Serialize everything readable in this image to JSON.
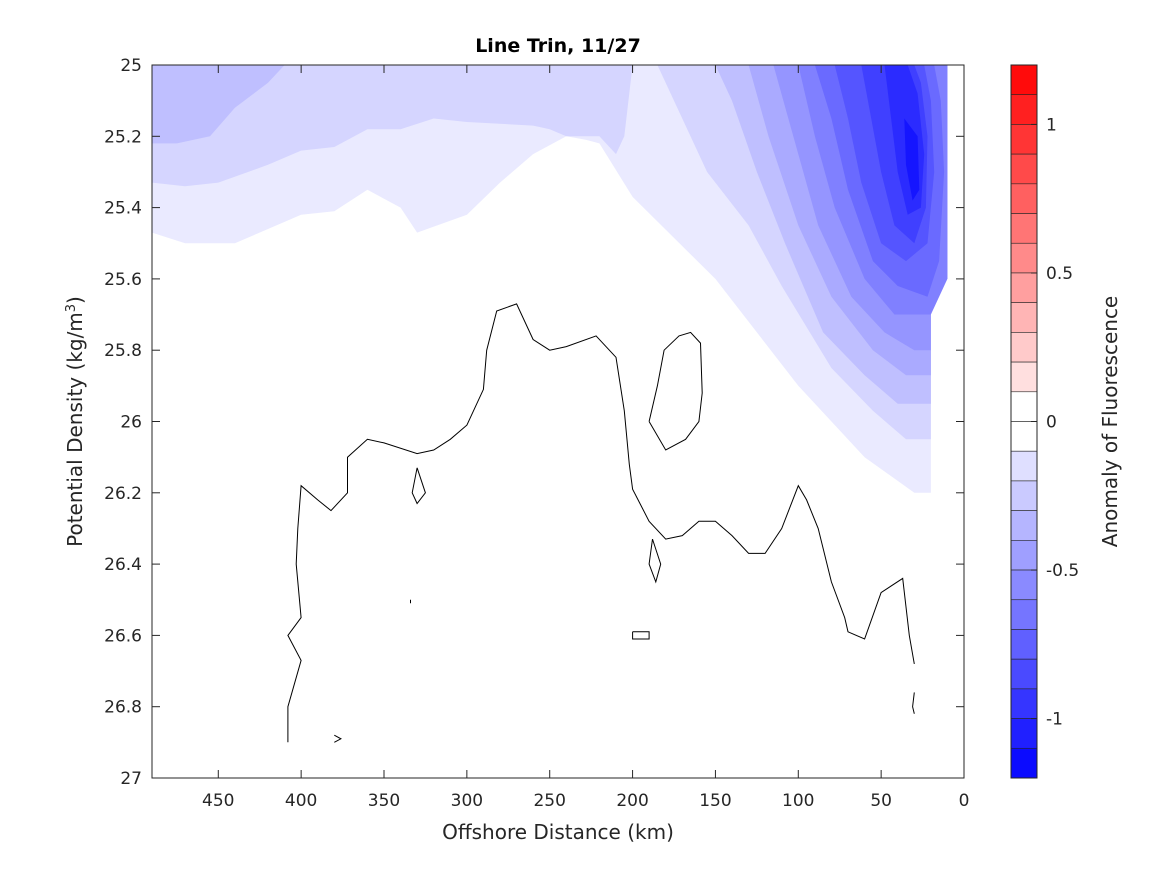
{
  "chart_data": {
    "type": "contour",
    "title": "Line Trin, 11/27",
    "xlabel": "Offshore Distance (km)",
    "ylabel_main": "Potential Density (kg/m",
    "ylabel_sup": "3",
    "ylabel_close": ")",
    "xlim": [
      490,
      0
    ],
    "x_reversed": true,
    "ylim": [
      25,
      27
    ],
    "y_reversed": true,
    "x_ticks": [
      450,
      400,
      350,
      300,
      250,
      200,
      150,
      100,
      50,
      0
    ],
    "x_tick_labels": [
      "450",
      "400",
      "350",
      "300",
      "250",
      "200",
      "150",
      "100",
      "50",
      "0"
    ],
    "y_ticks": [
      25,
      25.2,
      25.4,
      25.6,
      25.8,
      26,
      26.2,
      26.4,
      26.6,
      26.8,
      27
    ],
    "y_tick_labels": [
      "25",
      "25.2",
      "25.4",
      "25.6",
      "25.8",
      "26",
      "26.2",
      "26.4",
      "26.6",
      "26.8",
      "27"
    ],
    "colorbar": {
      "label": "Anomaly of Fluorescence",
      "range": [
        -1.2,
        1.2
      ],
      "levels": 24,
      "ticks": [
        1,
        0.5,
        0,
        -0.5,
        -1
      ],
      "tick_labels": [
        "1",
        "0.5",
        "0",
        "-0.5",
        "-1"
      ],
      "negative_color": "#0000ff",
      "positive_color": "#ff0000",
      "zero_color": "#ffffff"
    },
    "filled_regions": [
      {
        "level": -0.1,
        "points": [
          [
            490,
            25
          ],
          [
            490,
            25.47
          ],
          [
            470,
            25.5
          ],
          [
            440,
            25.5
          ],
          [
            420,
            25.46
          ],
          [
            400,
            25.42
          ],
          [
            380,
            25.41
          ],
          [
            360,
            25.35
          ],
          [
            340,
            25.4
          ],
          [
            330,
            25.47
          ],
          [
            300,
            25.42
          ],
          [
            280,
            25.33
          ],
          [
            260,
            25.25
          ],
          [
            240,
            25.2
          ],
          [
            228,
            25.21
          ],
          [
            220,
            25.22
          ],
          [
            200,
            25.37
          ],
          [
            150,
            25.6
          ],
          [
            100,
            25.9
          ],
          [
            60,
            26.1
          ],
          [
            30,
            26.2
          ],
          [
            20,
            26.2
          ],
          [
            20,
            25.6
          ],
          [
            10,
            25.6
          ],
          [
            10,
            25
          ]
        ]
      },
      {
        "level": -0.2,
        "points": [
          [
            490,
            25
          ],
          [
            490,
            25.33
          ],
          [
            470,
            25.34
          ],
          [
            450,
            25.33
          ],
          [
            420,
            25.28
          ],
          [
            400,
            25.24
          ],
          [
            380,
            25.23
          ],
          [
            360,
            25.18
          ],
          [
            340,
            25.18
          ],
          [
            320,
            25.15
          ],
          [
            300,
            25.16
          ],
          [
            260,
            25.17
          ],
          [
            250,
            25.18
          ],
          [
            240,
            25.2
          ],
          [
            230,
            25.2
          ],
          [
            220,
            25.2
          ],
          [
            210,
            25.25
          ],
          [
            205,
            25.2
          ],
          [
            200,
            25
          ],
          [
            185,
            25
          ],
          [
            175,
            25.1
          ],
          [
            155,
            25.3
          ],
          [
            130,
            25.45
          ],
          [
            110,
            25.62
          ],
          [
            80,
            25.85
          ],
          [
            55,
            25.97
          ],
          [
            35,
            26.05
          ],
          [
            20,
            26.05
          ],
          [
            20,
            25.6
          ],
          [
            10,
            25.6
          ],
          [
            10,
            25
          ]
        ]
      },
      {
        "level": -0.3,
        "points": [
          [
            490,
            25
          ],
          [
            490,
            25.22
          ],
          [
            475,
            25.22
          ],
          [
            455,
            25.2
          ],
          [
            440,
            25.12
          ],
          [
            420,
            25.05
          ],
          [
            410,
            25
          ],
          [
            150,
            25
          ],
          [
            140,
            25.1
          ],
          [
            125,
            25.3
          ],
          [
            108,
            25.5
          ],
          [
            85,
            25.75
          ],
          [
            60,
            25.87
          ],
          [
            40,
            25.95
          ],
          [
            20,
            25.95
          ],
          [
            20,
            25.6
          ],
          [
            10,
            25.6
          ],
          [
            10,
            25
          ]
        ]
      },
      {
        "level": -0.4,
        "points": [
          [
            130,
            25
          ],
          [
            118,
            25.2
          ],
          [
            100,
            25.45
          ],
          [
            80,
            25.65
          ],
          [
            55,
            25.8
          ],
          [
            35,
            25.87
          ],
          [
            20,
            25.87
          ],
          [
            20,
            25.6
          ],
          [
            10,
            25.6
          ],
          [
            10,
            25
          ]
        ]
      },
      {
        "level": -0.5,
        "points": [
          [
            115,
            25
          ],
          [
            103,
            25.2
          ],
          [
            88,
            25.45
          ],
          [
            68,
            25.65
          ],
          [
            48,
            25.75
          ],
          [
            30,
            25.8
          ],
          [
            20,
            25.8
          ],
          [
            20,
            25.6
          ],
          [
            10,
            25.6
          ],
          [
            10,
            25
          ]
        ]
      },
      {
        "level": -0.6,
        "points": [
          [
            100,
            25
          ],
          [
            90,
            25.2
          ],
          [
            78,
            25.4
          ],
          [
            60,
            25.6
          ],
          [
            42,
            25.7
          ],
          [
            20,
            25.7
          ],
          [
            10,
            25.6
          ],
          [
            10,
            25
          ]
        ]
      },
      {
        "level": -0.7,
        "points": [
          [
            90,
            25
          ],
          [
            80,
            25.15
          ],
          [
            70,
            25.35
          ],
          [
            55,
            25.55
          ],
          [
            40,
            25.62
          ],
          [
            22,
            25.65
          ],
          [
            15,
            25.55
          ],
          [
            12,
            25.3
          ],
          [
            14,
            25.1
          ],
          [
            18,
            25
          ]
        ]
      },
      {
        "level": -0.8,
        "points": [
          [
            78,
            25
          ],
          [
            70,
            25.15
          ],
          [
            62,
            25.33
          ],
          [
            50,
            25.5
          ],
          [
            35,
            25.55
          ],
          [
            22,
            25.5
          ],
          [
            18,
            25.3
          ],
          [
            20,
            25.1
          ],
          [
            24,
            25
          ]
        ]
      },
      {
        "level": -0.9,
        "points": [
          [
            62,
            25
          ],
          [
            56,
            25.15
          ],
          [
            50,
            25.3
          ],
          [
            42,
            25.45
          ],
          [
            30,
            25.5
          ],
          [
            23,
            25.4
          ],
          [
            22,
            25.2
          ],
          [
            26,
            25.05
          ],
          [
            30,
            25
          ]
        ]
      },
      {
        "level": -1.0,
        "points": [
          [
            48,
            25
          ],
          [
            44,
            25.15
          ],
          [
            40,
            25.3
          ],
          [
            34,
            25.42
          ],
          [
            26,
            25.4
          ],
          [
            24,
            25.25
          ],
          [
            28,
            25.08
          ],
          [
            34,
            25
          ]
        ]
      },
      {
        "level": -1.1,
        "points": [
          [
            36,
            25.15
          ],
          [
            35,
            25.28
          ],
          [
            31,
            25.38
          ],
          [
            27,
            25.35
          ],
          [
            28,
            25.2
          ]
        ]
      }
    ],
    "zero_contours": [
      [
        [
          408,
          26.9
        ],
        [
          408,
          26.8
        ],
        [
          400,
          26.67
        ],
        [
          408,
          26.6
        ],
        [
          400,
          26.55
        ],
        [
          403,
          26.4
        ],
        [
          402,
          26.3
        ],
        [
          400,
          26.18
        ],
        [
          390,
          26.22
        ],
        [
          382,
          26.25
        ],
        [
          372,
          26.2
        ],
        [
          372,
          26.1
        ],
        [
          360,
          26.05
        ],
        [
          350,
          26.06
        ],
        [
          330,
          26.09
        ],
        [
          320,
          26.08
        ],
        [
          310,
          26.05
        ],
        [
          300,
          26.01
        ],
        [
          290,
          25.91
        ],
        [
          288,
          25.8
        ],
        [
          282,
          25.69
        ],
        [
          270,
          25.67
        ],
        [
          260,
          25.77
        ],
        [
          250,
          25.8
        ],
        [
          240,
          25.79
        ],
        [
          222,
          25.76
        ],
        [
          210,
          25.82
        ],
        [
          205,
          25.97
        ],
        [
          202,
          26.12
        ],
        [
          200,
          26.19
        ],
        [
          190,
          26.28
        ],
        [
          180,
          26.33
        ],
        [
          170,
          26.32
        ],
        [
          160,
          26.28
        ],
        [
          150,
          26.28
        ],
        [
          140,
          26.32
        ],
        [
          130,
          26.37
        ],
        [
          120,
          26.37
        ],
        [
          110,
          26.3
        ],
        [
          100,
          26.18
        ],
        [
          95,
          26.22
        ],
        [
          88,
          26.3
        ],
        [
          80,
          26.45
        ],
        [
          72,
          26.55
        ],
        [
          70,
          26.59
        ],
        [
          60,
          26.61
        ],
        [
          50,
          26.48
        ],
        [
          37,
          26.44
        ],
        [
          33,
          26.6
        ],
        [
          30,
          26.68
        ]
      ],
      [
        [
          190,
          26.0
        ],
        [
          185,
          25.9
        ],
        [
          181,
          25.8
        ],
        [
          172,
          25.76
        ],
        [
          165,
          25.75
        ],
        [
          159,
          25.78
        ],
        [
          158,
          25.92
        ],
        [
          160,
          26.0
        ],
        [
          168,
          26.05
        ],
        [
          180,
          26.08
        ],
        [
          190,
          26.0
        ]
      ],
      [
        [
          330,
          26.13
        ],
        [
          325,
          26.2
        ],
        [
          330,
          26.23
        ],
        [
          333,
          26.2
        ],
        [
          330,
          26.13
        ]
      ],
      [
        [
          188,
          26.33
        ],
        [
          190,
          26.4
        ],
        [
          186,
          26.45
        ],
        [
          183,
          26.4
        ],
        [
          188,
          26.33
        ]
      ],
      [
        [
          200,
          26.59
        ],
        [
          190,
          26.59
        ],
        [
          190,
          26.61
        ],
        [
          200,
          26.61
        ],
        [
          200,
          26.59
        ]
      ],
      [
        [
          380,
          26.88
        ],
        [
          376,
          26.89
        ],
        [
          380,
          26.9
        ]
      ],
      [
        [
          30,
          26.76
        ],
        [
          31,
          26.8
        ],
        [
          30,
          26.82
        ]
      ],
      [
        [
          334,
          26.5
        ],
        [
          334,
          26.51
        ]
      ]
    ]
  }
}
